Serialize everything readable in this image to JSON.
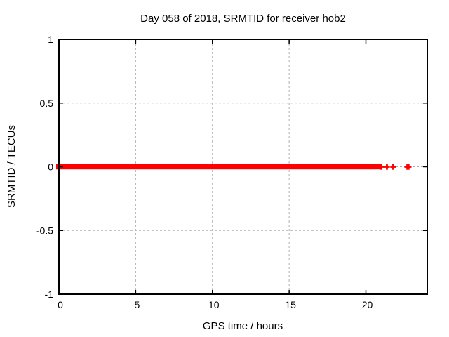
{
  "chart_data": {
    "type": "scatter",
    "title": "Day 058 of 2018, SRMTID for receiver hob2",
    "xlabel": "GPS time / hours",
    "ylabel": "SRMTID / TECUs",
    "xlim": [
      0,
      24
    ],
    "ylim": [
      -1,
      1
    ],
    "x_ticks": [
      0,
      5,
      10,
      15,
      20
    ],
    "x_tick_labels": [
      "0",
      "5",
      "10",
      "15",
      "20"
    ],
    "y_ticks": [
      -1,
      -0.5,
      0,
      0.5,
      1
    ],
    "y_tick_labels": [
      "-1",
      "-0.5",
      "0",
      "0.5",
      "1"
    ],
    "grid": {
      "show": true,
      "style": "dashed",
      "color": "#b0b0b0"
    },
    "legend": "none",
    "colors": {
      "background": "#ffffff",
      "axis": "#000000",
      "text": "#000000",
      "series": "#ff0000"
    },
    "series": [
      {
        "name": "SRMTID",
        "marker": "plus",
        "color": "#ff0000",
        "dense_run": {
          "x_start": 0,
          "x_end": 20.87,
          "y": 0,
          "description": "continuous overlapping plus markers at y=0 forming a solid band"
        },
        "sparse_points": [
          [
            21.0,
            0
          ],
          [
            21.37,
            0
          ],
          [
            21.78,
            0
          ],
          [
            22.7,
            0
          ],
          [
            22.78,
            0
          ]
        ]
      }
    ]
  }
}
